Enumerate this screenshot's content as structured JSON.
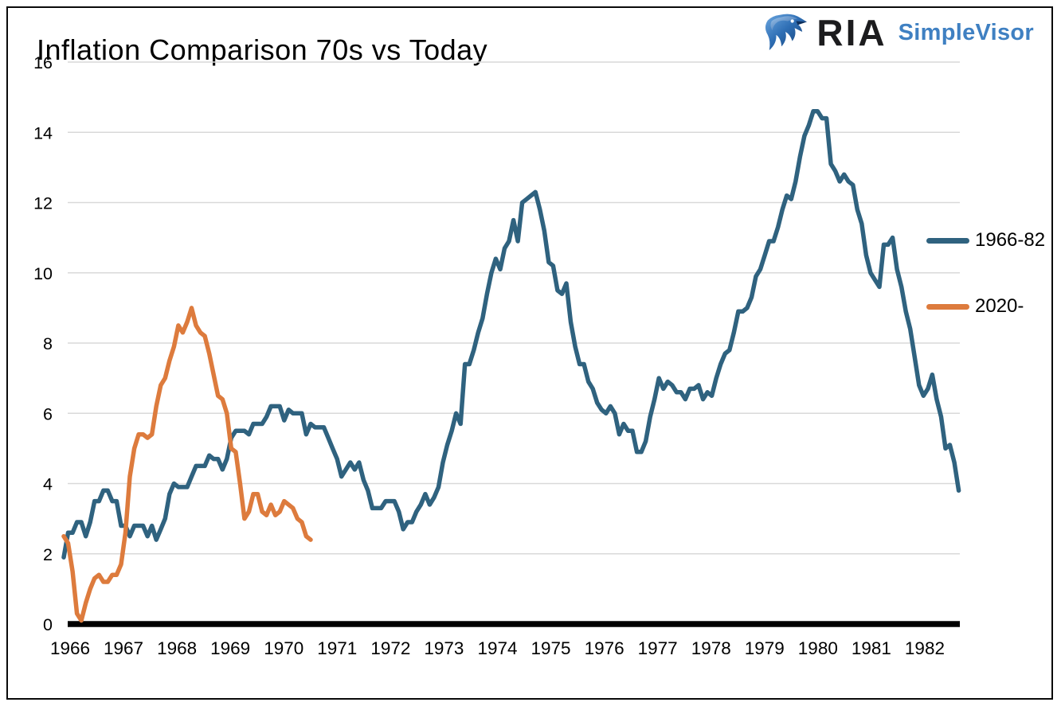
{
  "title": "Inflation Comparison 70s vs Today",
  "logo": {
    "eagle_icon": "eagle-icon",
    "ria_text": "RIA",
    "product_text": "SimpleVisor",
    "ria_color": "#1c1c1e",
    "product_color": "#3f80c2"
  },
  "chart_data": {
    "type": "line",
    "title": "Inflation Comparison 70s vs Today",
    "xlabel": "",
    "ylabel": "",
    "ylim": [
      0,
      16
    ],
    "y_ticks": [
      0,
      2,
      4,
      6,
      8,
      10,
      12,
      14,
      16
    ],
    "x_tick_labels": [
      "1966",
      "1967",
      "1968",
      "1969",
      "1970",
      "1971",
      "1972",
      "1973",
      "1974",
      "1975",
      "1976",
      "1977",
      "1978",
      "1979",
      "1980",
      "1981",
      "1982"
    ],
    "grid": "horizontal-only",
    "gridline_color": "#d9d9d9",
    "zero_axis_color": "#000000",
    "legend_position": "right",
    "frequency": "monthly",
    "series": [
      {
        "name": "1966-82",
        "color": "#2f627f",
        "start_label": "1966-01",
        "values": [
          1.9,
          2.6,
          2.6,
          2.9,
          2.9,
          2.5,
          2.9,
          3.5,
          3.5,
          3.8,
          3.8,
          3.5,
          3.5,
          2.8,
          2.8,
          2.5,
          2.8,
          2.8,
          2.8,
          2.5,
          2.8,
          2.4,
          2.7,
          3.0,
          3.7,
          4.0,
          3.9,
          3.9,
          3.9,
          4.2,
          4.5,
          4.5,
          4.5,
          4.8,
          4.7,
          4.7,
          4.4,
          4.7,
          5.3,
          5.5,
          5.5,
          5.5,
          5.4,
          5.7,
          5.7,
          5.7,
          5.9,
          6.2,
          6.2,
          6.2,
          5.8,
          6.1,
          6.0,
          6.0,
          6.0,
          5.4,
          5.7,
          5.6,
          5.6,
          5.6,
          5.3,
          5.0,
          4.7,
          4.2,
          4.4,
          4.6,
          4.4,
          4.6,
          4.1,
          3.8,
          3.3,
          3.3,
          3.3,
          3.5,
          3.5,
          3.5,
          3.2,
          2.7,
          2.9,
          2.9,
          3.2,
          3.4,
          3.7,
          3.4,
          3.6,
          3.9,
          4.6,
          5.1,
          5.5,
          6.0,
          5.7,
          7.4,
          7.4,
          7.8,
          8.3,
          8.7,
          9.4,
          10.0,
          10.4,
          10.1,
          10.7,
          10.9,
          11.5,
          10.9,
          12.0,
          12.1,
          12.2,
          12.3,
          11.8,
          11.2,
          10.3,
          10.2,
          9.5,
          9.4,
          9.7,
          8.6,
          7.9,
          7.4,
          7.4,
          6.9,
          6.7,
          6.3,
          6.1,
          6.0,
          6.2,
          6.0,
          5.4,
          5.7,
          5.5,
          5.5,
          4.9,
          4.9,
          5.2,
          5.9,
          6.4,
          7.0,
          6.7,
          6.9,
          6.8,
          6.6,
          6.6,
          6.4,
          6.7,
          6.7,
          6.8,
          6.4,
          6.6,
          6.5,
          7.0,
          7.4,
          7.7,
          7.8,
          8.3,
          8.9,
          8.9,
          9.0,
          9.3,
          9.9,
          10.1,
          10.5,
          10.9,
          10.9,
          11.3,
          11.8,
          12.2,
          12.1,
          12.6,
          13.3,
          13.9,
          14.2,
          14.6,
          14.6,
          14.4,
          14.4,
          13.1,
          12.9,
          12.6,
          12.8,
          12.6,
          12.5,
          11.8,
          11.4,
          10.5,
          10.0,
          9.8,
          9.6,
          10.8,
          10.8,
          11.0,
          10.1,
          9.6,
          8.9,
          8.4,
          7.6,
          6.8,
          6.5,
          6.7,
          7.1,
          6.4,
          5.9,
          5.0,
          5.1,
          4.6,
          3.8
        ]
      },
      {
        "name": "2020-",
        "color": "#dd7b3d",
        "start_label": "2020-01",
        "values": [
          2.5,
          2.3,
          1.5,
          0.3,
          0.1,
          0.6,
          1.0,
          1.3,
          1.4,
          1.2,
          1.2,
          1.4,
          1.4,
          1.7,
          2.6,
          4.2,
          5.0,
          5.4,
          5.4,
          5.3,
          5.4,
          6.2,
          6.8,
          7.0,
          7.5,
          7.9,
          8.5,
          8.3,
          8.6,
          9.0,
          8.5,
          8.3,
          8.2,
          7.7,
          7.1,
          6.5,
          6.4,
          6.0,
          5.0,
          4.9,
          4.0,
          3.0,
          3.2,
          3.7,
          3.7,
          3.2,
          3.1,
          3.4,
          3.1,
          3.2,
          3.5,
          3.4,
          3.3,
          3.0,
          2.9,
          2.5,
          2.4
        ]
      }
    ]
  }
}
